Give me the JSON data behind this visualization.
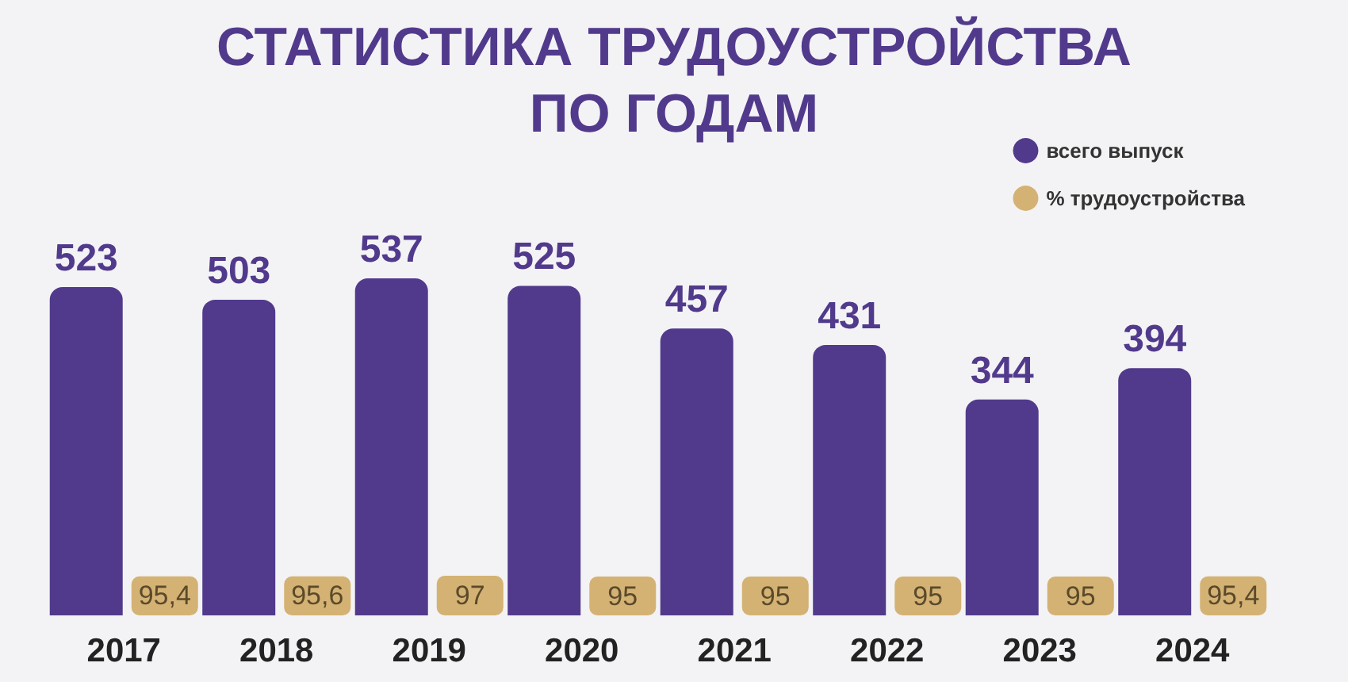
{
  "chart_data": {
    "type": "bar",
    "title": "СТАТИСТИКА ТРУДОУСТРОЙСТВА\nПО ГОДАМ",
    "categories": [
      "2017",
      "2018",
      "2019",
      "2020",
      "2021",
      "2022",
      "2023",
      "2024"
    ],
    "series": [
      {
        "name": "всего выпуск",
        "color": "#513a8c",
        "values": [
          523,
          503,
          537,
          525,
          457,
          431,
          344,
          394
        ],
        "value_labels": [
          "523",
          "503",
          "537",
          "525",
          "457",
          "431",
          "344",
          "394"
        ]
      },
      {
        "name": "% трудоустройства",
        "color": "#d4b274",
        "axis": "y2",
        "values": [
          95.4,
          95.6,
          97,
          95,
          95,
          95,
          95,
          95.4
        ],
        "value_labels": [
          "95,4",
          "95,6",
          "97",
          "95",
          "95",
          "95",
          "95",
          "95,4"
        ]
      }
    ],
    "tick_labels": "x",
    "legend": "top right"
  }
}
